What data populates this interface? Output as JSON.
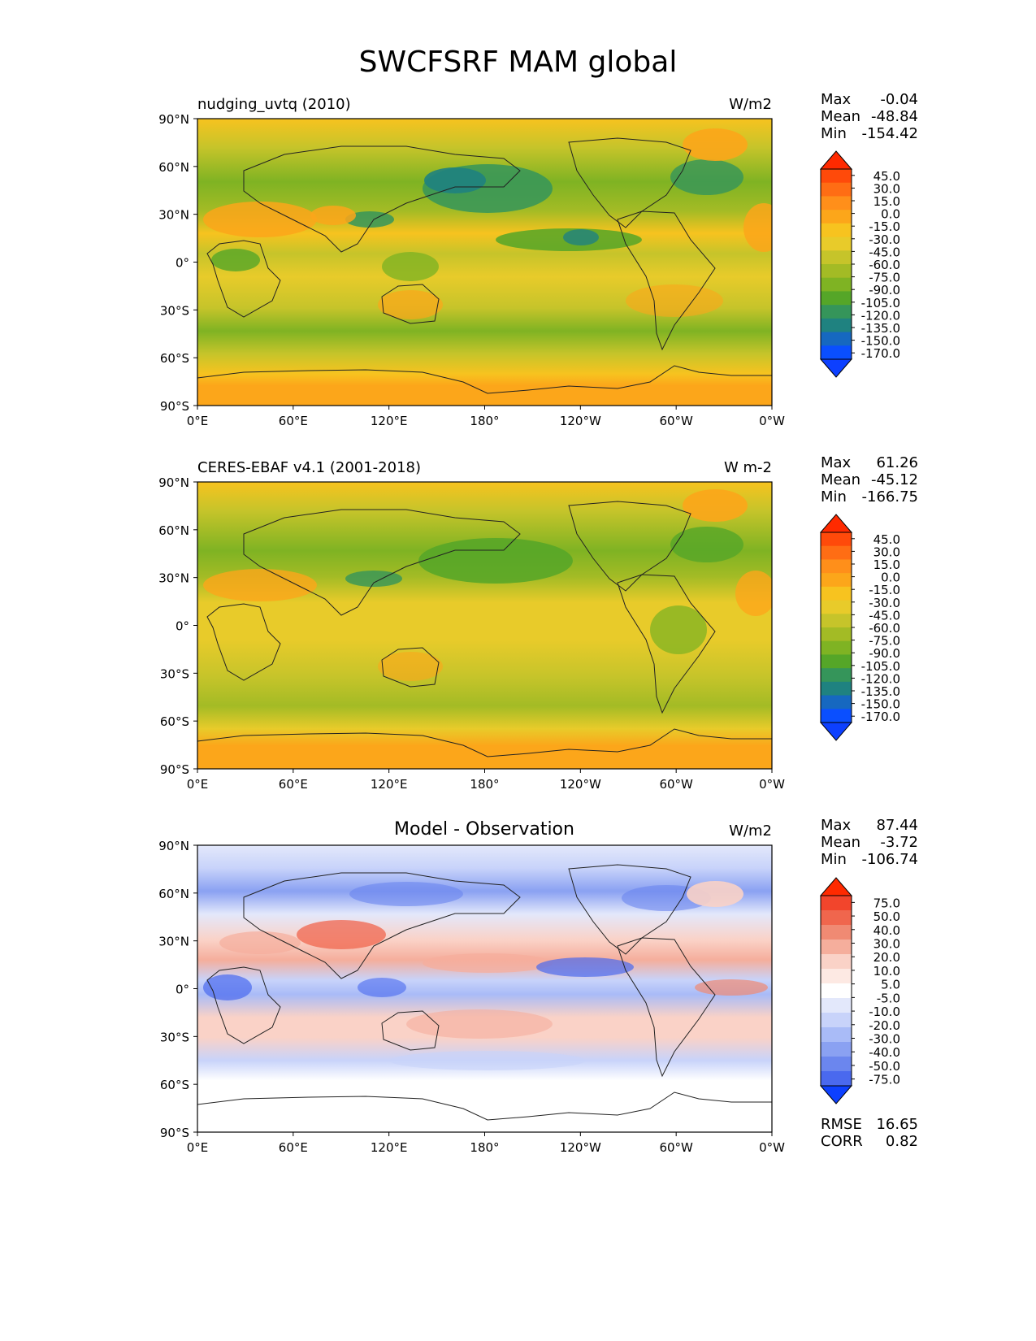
{
  "title": "SWCFSRF MAM global",
  "lat_labels": [
    "90°N",
    "60°N",
    "30°N",
    "0°",
    "30°S",
    "60°S",
    "90°S"
  ],
  "lon_labels": [
    "0°E",
    "60°E",
    "120°E",
    "180°",
    "120°W",
    "60°W",
    "0°W"
  ],
  "panels": [
    {
      "left_title": "nudging_uvtq (2010)",
      "center_title": "",
      "units": "W/m2",
      "stats": [
        {
          "label": "Max",
          "value": "-0.04"
        },
        {
          "label": "Mean",
          "value": "-48.84"
        },
        {
          "label": "Min",
          "value": "-154.42"
        }
      ],
      "colorbar": {
        "labels": [
          "45.0",
          "30.0",
          "15.0",
          "0.0",
          "-15.0",
          "-30.0",
          "-45.0",
          "-60.0",
          "-75.0",
          "-90.0",
          "-105.0",
          "-120.0",
          "-135.0",
          "-150.0",
          "-170.0"
        ],
        "colors": [
          "#ff2a00",
          "#ff4a0a",
          "#ff6d14",
          "#ff8f1a",
          "#fca61a",
          "#f7c31f",
          "#e8cb2a",
          "#c6c42a",
          "#a3bb25",
          "#7fb323",
          "#55a628",
          "#35955a",
          "#1f8280",
          "#1668c0",
          "#0a4fff",
          "#0d40ff"
        ]
      },
      "extra_stats": []
    },
    {
      "left_title": "CERES-EBAF v4.1 (2001-2018)",
      "center_title": "",
      "units": "W m-2",
      "stats": [
        {
          "label": "Max",
          "value": "61.26"
        },
        {
          "label": "Mean",
          "value": "-45.12"
        },
        {
          "label": "Min",
          "value": "-166.75"
        }
      ],
      "colorbar": {
        "labels": [
          "45.0",
          "30.0",
          "15.0",
          "0.0",
          "-15.0",
          "-30.0",
          "-45.0",
          "-60.0",
          "-75.0",
          "-90.0",
          "-105.0",
          "-120.0",
          "-135.0",
          "-150.0",
          "-170.0"
        ],
        "colors": [
          "#ff2a00",
          "#ff4a0a",
          "#ff6d14",
          "#ff8f1a",
          "#fca61a",
          "#f7c31f",
          "#e8cb2a",
          "#c6c42a",
          "#a3bb25",
          "#7fb323",
          "#55a628",
          "#35955a",
          "#1f8280",
          "#1668c0",
          "#0a4fff",
          "#0d40ff"
        ]
      },
      "extra_stats": []
    },
    {
      "left_title": "",
      "center_title": "Model - Observation",
      "units": "W/m2",
      "stats": [
        {
          "label": "Max",
          "value": "87.44"
        },
        {
          "label": "Mean",
          "value": "-3.72"
        },
        {
          "label": "Min",
          "value": "-106.74"
        }
      ],
      "colorbar": {
        "labels": [
          "75.0",
          "50.0",
          "40.0",
          "30.0",
          "20.0",
          "10.0",
          "5.0",
          "-5.0",
          "-10.0",
          "-20.0",
          "-30.0",
          "-40.0",
          "-50.0",
          "-75.0"
        ],
        "colors": [
          "#ff2a00",
          "#f2452c",
          "#f0664d",
          "#f08a73",
          "#f5ae9c",
          "#fad2c7",
          "#fde9e3",
          "#ffffff",
          "#e3e8fb",
          "#c8d3fa",
          "#a9bbf7",
          "#8aa1f2",
          "#6b86ee",
          "#4a69ee",
          "#0d40ff"
        ]
      },
      "extra_stats": [
        {
          "label": "RMSE",
          "value": "16.65"
        },
        {
          "label": "CORR",
          "value": "0.82"
        }
      ]
    }
  ]
}
